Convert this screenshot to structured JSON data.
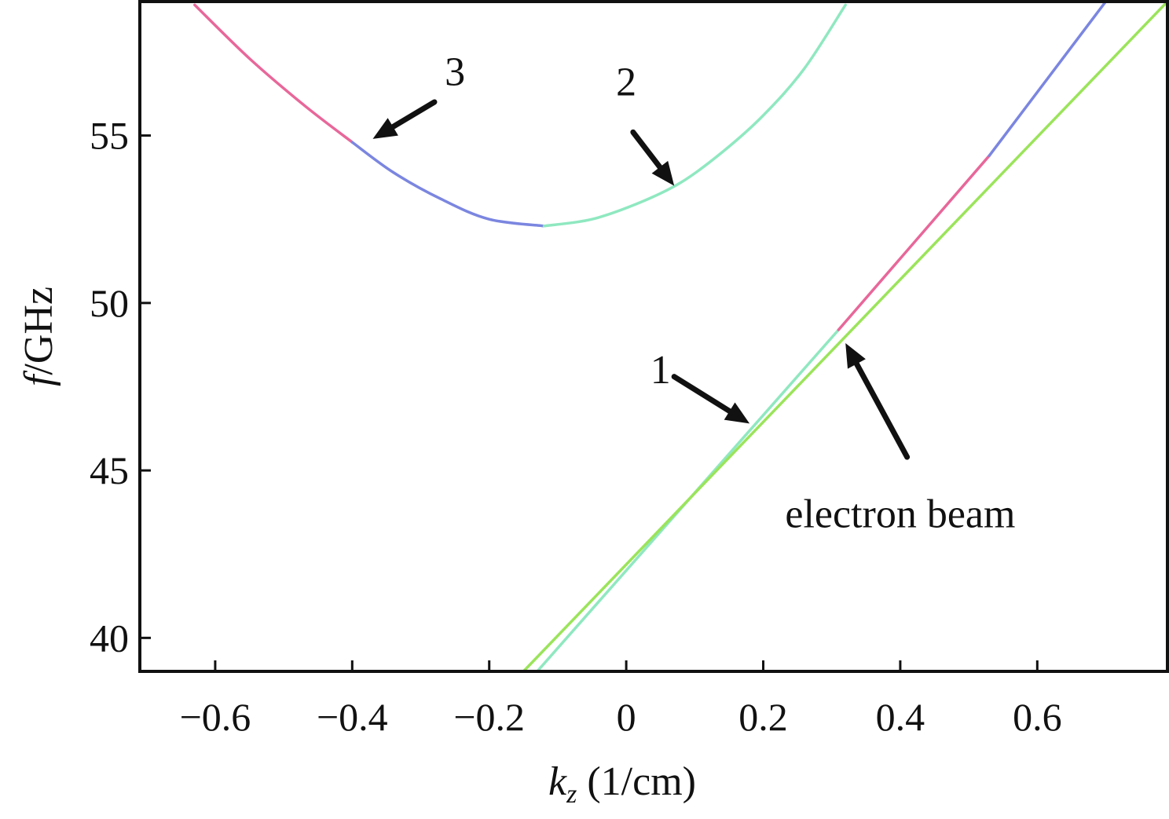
{
  "chart_data": {
    "type": "line",
    "xlabel": {
      "main": "k",
      "sub": "z",
      "unit": " (1/cm)"
    },
    "ylabel": {
      "italic": "f",
      "rest": "/GHz"
    },
    "xlim": [
      -0.71,
      0.79
    ],
    "ylim": [
      39.0,
      59.0
    ],
    "xticks": [
      -0.6,
      -0.4,
      -0.2,
      0,
      0.2,
      0.4,
      0.6
    ],
    "xtick_labels": [
      "−0.6",
      "−0.4",
      "−0.2",
      "0",
      "0.2",
      "0.4",
      "0.6"
    ],
    "yticks": [
      40,
      45,
      50,
      55
    ],
    "ytick_labels": [
      "40",
      "45",
      "50",
      "55"
    ],
    "grid": false,
    "series": [
      {
        "segments": [
          {
            "color": "#e8679a",
            "points": [
              [
                -0.63,
                58.9
              ],
              [
                -0.55,
                57.3
              ],
              [
                -0.47,
                55.9
              ],
              [
                -0.4,
                54.8
              ]
            ]
          },
          {
            "color": "#7b86e0",
            "points": [
              [
                -0.4,
                54.8
              ],
              [
                -0.34,
                53.9
              ],
              [
                -0.27,
                53.1
              ],
              [
                -0.2,
                52.5
              ],
              [
                -0.12,
                52.3
              ]
            ]
          },
          {
            "color": "#8fe8c0",
            "points": [
              [
                -0.12,
                52.3
              ],
              [
                -0.05,
                52.5
              ],
              [
                0.02,
                53.0
              ],
              [
                0.08,
                53.6
              ],
              [
                0.14,
                54.5
              ],
              [
                0.2,
                55.6
              ],
              [
                0.26,
                57.0
              ],
              [
                0.32,
                58.9
              ]
            ]
          }
        ]
      },
      {
        "segments": [
          {
            "color": "#8fe8c0",
            "points": [
              [
                -0.13,
                39.0
              ],
              [
                0.31,
                49.2
              ]
            ]
          },
          {
            "color": "#e8679a",
            "points": [
              [
                0.31,
                49.2
              ],
              [
                0.53,
                54.4
              ]
            ]
          },
          {
            "color": "#7b86e0",
            "points": [
              [
                0.53,
                54.4
              ],
              [
                0.7,
                59.0
              ]
            ]
          }
        ]
      },
      {
        "segments": [
          {
            "color": "#9be45a",
            "points": [
              [
                -0.15,
                39.0
              ],
              [
                0.79,
                59.0
              ]
            ]
          }
        ]
      }
    ],
    "annotations": [
      {
        "text": "1",
        "label_at": [
          0.05,
          47.6
        ],
        "arrow_from": [
          0.07,
          47.8
        ],
        "arrow_to": [
          0.18,
          46.4
        ]
      },
      {
        "text": "2",
        "label_at": [
          0.0,
          56.2
        ],
        "arrow_from": [
          0.01,
          55.1
        ],
        "arrow_to": [
          0.07,
          53.5
        ]
      },
      {
        "text": "3",
        "label_at": [
          -0.25,
          56.5
        ],
        "arrow_from": [
          -0.28,
          56.0
        ],
        "arrow_to": [
          -0.37,
          54.9
        ]
      },
      {
        "text": "electron beam",
        "label_at": [
          0.4,
          43.3
        ],
        "arrow_from": [
          0.41,
          45.4
        ],
        "arrow_to": [
          0.32,
          48.8
        ]
      }
    ],
    "colors": {
      "axis": "#111111",
      "arrow": "#111111",
      "text": "#111111"
    }
  }
}
